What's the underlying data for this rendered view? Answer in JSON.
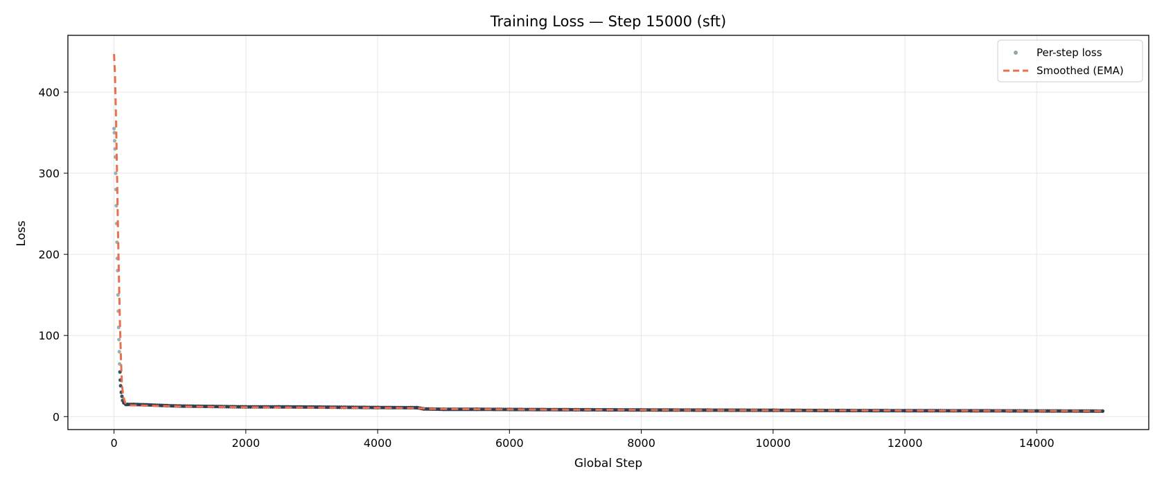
{
  "chart_data": {
    "type": "scatter",
    "title": "Training Loss — Step 15000 (sft)",
    "xlabel": "Global Step",
    "ylabel": "Loss",
    "xlim": [
      -700,
      15700
    ],
    "ylim": [
      -16,
      470
    ],
    "xticks": [
      0,
      2000,
      4000,
      6000,
      8000,
      10000,
      12000,
      14000
    ],
    "yticks": [
      0,
      100,
      200,
      300,
      400
    ],
    "grid": true,
    "legend_position": "top-right",
    "series": [
      {
        "name": "Per-step loss",
        "kind": "scatter",
        "color": "#2c3e50",
        "highlight_color": "#95a5a6",
        "points": [
          [
            0,
            355
          ],
          [
            5,
            350
          ],
          [
            10,
            340
          ],
          [
            15,
            330
          ],
          [
            20,
            320
          ],
          [
            25,
            300
          ],
          [
            30,
            280
          ],
          [
            35,
            260
          ],
          [
            40,
            238
          ],
          [
            45,
            215
          ],
          [
            50,
            195
          ],
          [
            55,
            180
          ],
          [
            60,
            150
          ],
          [
            65,
            130
          ],
          [
            70,
            110
          ],
          [
            75,
            95
          ],
          [
            80,
            80
          ],
          [
            85,
            65
          ],
          [
            90,
            55
          ],
          [
            95,
            45
          ],
          [
            100,
            38
          ],
          [
            110,
            30
          ],
          [
            120,
            25
          ],
          [
            130,
            20
          ],
          [
            150,
            17
          ],
          [
            180,
            15
          ],
          [
            200,
            15
          ],
          [
            300,
            15
          ],
          [
            500,
            14.5
          ],
          [
            800,
            13.5
          ],
          [
            1000,
            13
          ],
          [
            1500,
            12.5
          ],
          [
            2000,
            12
          ],
          [
            2500,
            12
          ],
          [
            3000,
            11.8
          ],
          [
            3500,
            11.5
          ],
          [
            4000,
            11.2
          ],
          [
            4500,
            11
          ],
          [
            4600,
            11
          ],
          [
            4700,
            9.5
          ],
          [
            5000,
            9
          ],
          [
            5500,
            9
          ],
          [
            6000,
            8.8
          ],
          [
            7000,
            8.5
          ],
          [
            8000,
            8.2
          ],
          [
            9000,
            8
          ],
          [
            10000,
            7.8
          ],
          [
            11000,
            7.5
          ],
          [
            12000,
            7.3
          ],
          [
            13000,
            7.2
          ],
          [
            14000,
            7
          ],
          [
            15000,
            6.8
          ]
        ]
      },
      {
        "name": "Smoothed (EMA)",
        "kind": "line",
        "style": "dashed",
        "color": "#e8704f",
        "points": [
          [
            0,
            447
          ],
          [
            15,
            420
          ],
          [
            30,
            370
          ],
          [
            45,
            300
          ],
          [
            60,
            230
          ],
          [
            75,
            170
          ],
          [
            90,
            115
          ],
          [
            105,
            70
          ],
          [
            120,
            40
          ],
          [
            140,
            25
          ],
          [
            170,
            17
          ],
          [
            220,
            14
          ],
          [
            500,
            13.5
          ],
          [
            1000,
            12.5
          ],
          [
            2000,
            11.5
          ],
          [
            3000,
            11.2
          ],
          [
            4000,
            10.8
          ],
          [
            4600,
            10.5
          ],
          [
            4800,
            9.5
          ],
          [
            6000,
            8.8
          ],
          [
            8000,
            8.2
          ],
          [
            10000,
            7.8
          ],
          [
            12000,
            7.4
          ],
          [
            14000,
            7.1
          ],
          [
            15000,
            7
          ]
        ]
      }
    ]
  }
}
